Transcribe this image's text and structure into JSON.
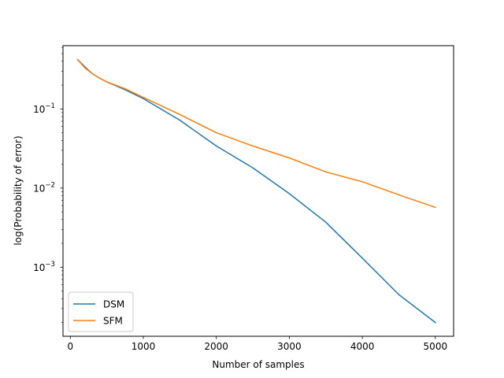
{
  "chart_data": {
    "type": "line",
    "title": "",
    "xlabel": "Number of samples",
    "ylabel": "log(Probability of error)",
    "xlim": [
      -100,
      5250
    ],
    "ylim": [
      0.000134,
      0.63
    ],
    "yscale": "log",
    "grid": false,
    "legend_position": "lower-left",
    "x_ticks": [
      0,
      1000,
      2000,
      3000,
      4000,
      5000
    ],
    "x_tick_labels": [
      "0",
      "1000",
      "2000",
      "3000",
      "4000",
      "5000"
    ],
    "y_ticks": [
      0.001,
      0.01,
      0.1
    ],
    "y_tick_labels": [
      {
        "base": "10",
        "exp": "−3"
      },
      {
        "base": "10",
        "exp": "−2"
      },
      {
        "base": "10",
        "exp": "−1"
      }
    ],
    "x": [
      100,
      200,
      300,
      400,
      500,
      750,
      1000,
      1500,
      2000,
      2500,
      3000,
      3500,
      4000,
      4500,
      5000
    ],
    "series": [
      {
        "name": "DSM",
        "color": "#1f77b4",
        "values": [
          0.42,
          0.34,
          0.28,
          0.245,
          0.22,
          0.175,
          0.135,
          0.072,
          0.034,
          0.018,
          0.0085,
          0.0037,
          0.0013,
          0.00045,
          0.0002
        ]
      },
      {
        "name": "SFM",
        "color": "#ff7f0e",
        "values": [
          0.42,
          0.33,
          0.28,
          0.245,
          0.22,
          0.18,
          0.14,
          0.085,
          0.05,
          0.034,
          0.024,
          0.016,
          0.012,
          0.0082,
          0.0057
        ]
      }
    ]
  }
}
